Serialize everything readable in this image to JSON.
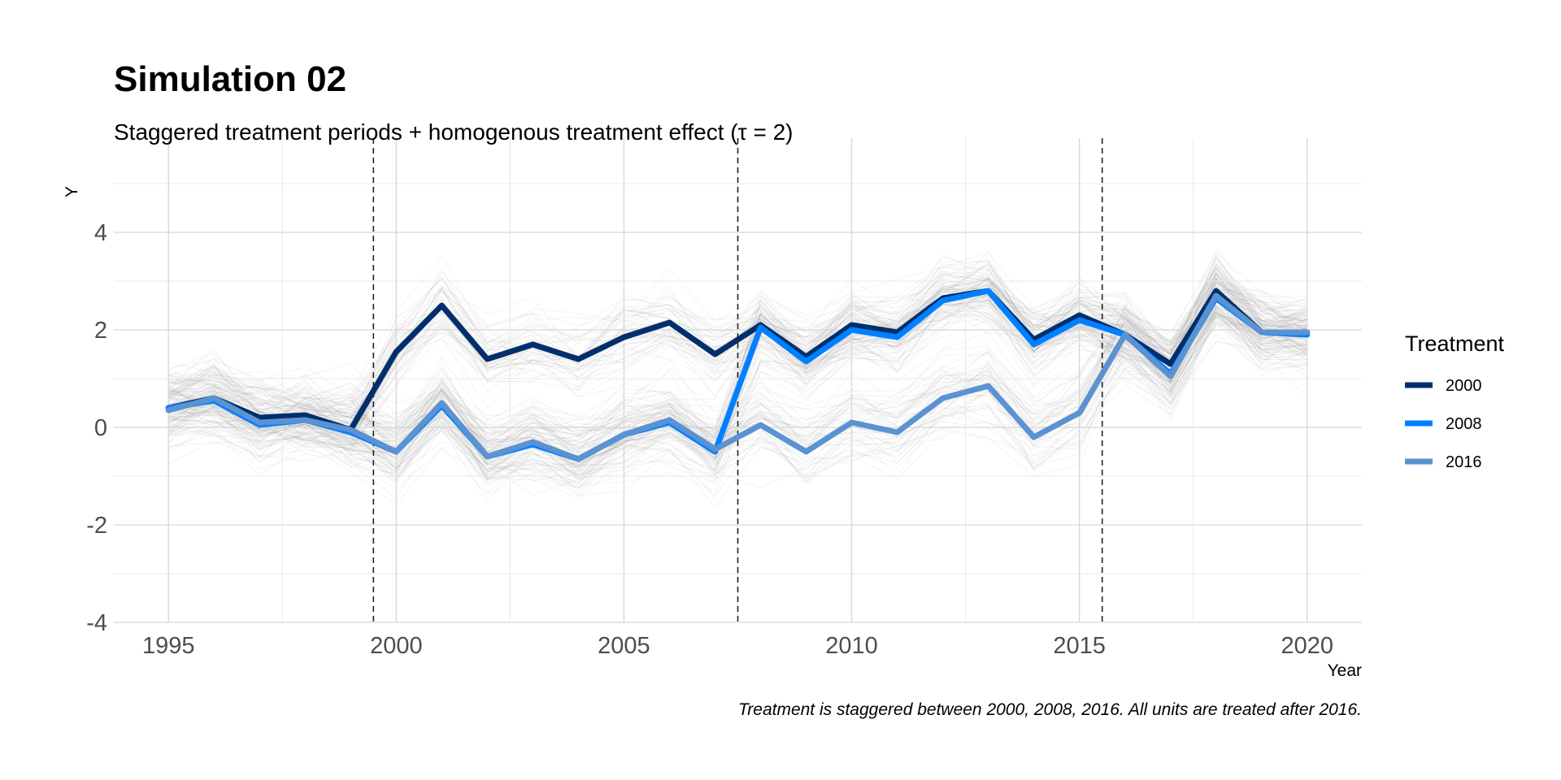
{
  "chart_data": {
    "type": "line",
    "title": "Simulation 02",
    "subtitle": "Staggered treatment periods + homogenous treatment effect (τ = 2)",
    "xlabel": "Year",
    "ylabel": "Y",
    "caption": "Treatment is staggered between 2000, 2008, 2016. All units are treated after 2016.",
    "xlim": [
      1993.8,
      2021.2
    ],
    "ylim": [
      -4,
      5
    ],
    "x_ticks": [
      1995,
      2000,
      2005,
      2010,
      2015,
      2020
    ],
    "x_tick_labels": [
      "1995",
      "2000",
      "2005",
      "2010",
      "2015",
      "2020"
    ],
    "y_ticks": [
      -4,
      -2,
      0,
      2,
      4
    ],
    "y_tick_labels": [
      "-4",
      "-2",
      "0",
      "2",
      "4"
    ],
    "grid": true,
    "treatment_lines": [
      1999.5,
      2007.5,
      2015.5
    ],
    "legend": {
      "title": "Treatment",
      "position": "right"
    },
    "x": [
      1995,
      1996,
      1997,
      1998,
      1999,
      2000,
      2001,
      2002,
      2003,
      2004,
      2005,
      2006,
      2007,
      2008,
      2009,
      2010,
      2011,
      2012,
      2013,
      2014,
      2015,
      2016,
      2017,
      2018,
      2019,
      2020
    ],
    "series": [
      {
        "name": "2000",
        "color": "#002f6c",
        "values": [
          0.4,
          0.6,
          0.2,
          0.25,
          -0.05,
          1.55,
          2.5,
          1.4,
          1.7,
          1.4,
          1.85,
          2.15,
          1.5,
          2.1,
          1.45,
          2.1,
          1.95,
          2.65,
          2.8,
          1.8,
          2.3,
          1.9,
          1.3,
          2.8,
          1.95,
          1.95
        ]
      },
      {
        "name": "2008",
        "color": "#0080ff",
        "values": [
          0.4,
          0.55,
          0.05,
          0.15,
          -0.1,
          -0.5,
          0.45,
          -0.6,
          -0.35,
          -0.65,
          -0.15,
          0.1,
          -0.5,
          2.05,
          1.35,
          2.0,
          1.85,
          2.6,
          2.8,
          1.7,
          2.2,
          1.9,
          1.1,
          2.65,
          1.95,
          1.9
        ]
      },
      {
        "name": "2016",
        "color": "#5b92d1",
        "values": [
          0.35,
          0.6,
          0.1,
          0.15,
          -0.05,
          -0.5,
          0.5,
          -0.6,
          -0.3,
          -0.65,
          -0.15,
          0.15,
          -0.45,
          0.05,
          -0.5,
          0.1,
          -0.1,
          0.6,
          0.85,
          -0.2,
          0.3,
          1.9,
          1.05,
          2.7,
          1.95,
          1.95
        ]
      }
    ],
    "background_units": {
      "color": "#7f7f7f",
      "description_count": 1000
    }
  }
}
